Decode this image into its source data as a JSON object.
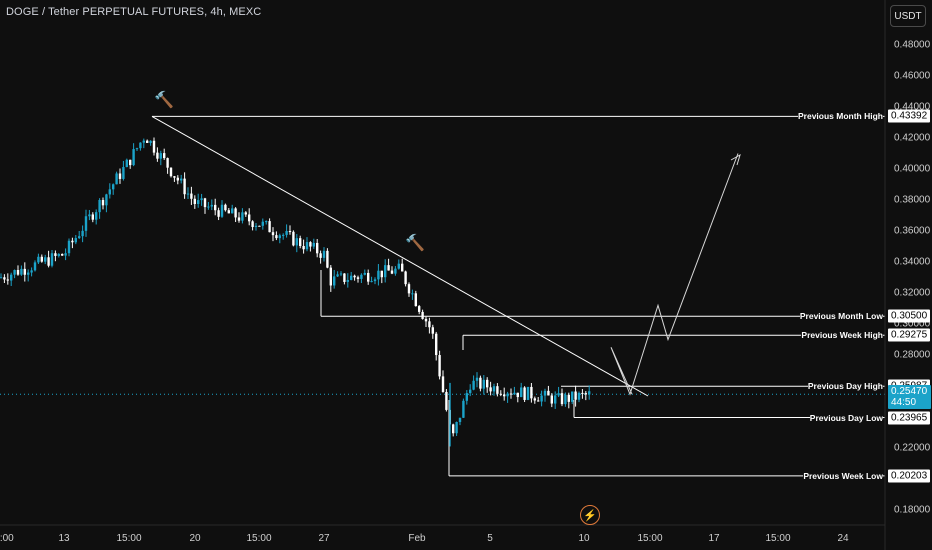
{
  "header": {
    "title": "DOGE / Tether PERPETUAL FUTURES, 4h, MEXC",
    "currency_button": "USDT"
  },
  "price_axis": {
    "labels": [
      "0.48000",
      "0.46000",
      "0.44000",
      "0.42000",
      "0.40000",
      "0.38000",
      "0.36000",
      "0.34000",
      "0.32000",
      "0.30000",
      "0.28000",
      "0.22000",
      "0.18000"
    ]
  },
  "time_axis": {
    "labels": [
      "2:00",
      "13",
      "15:00",
      "20",
      "15:00",
      "27",
      "Feb",
      "5",
      "10",
      "15:00",
      "17",
      "15:00",
      "24"
    ]
  },
  "levels": [
    {
      "name": "Previous Month High",
      "value": "0.43392"
    },
    {
      "name": "Previous Month Low",
      "value": "0.30500"
    },
    {
      "name": "Previous Week High",
      "value": "0.29275"
    },
    {
      "name": "Previous Day High",
      "value": "0.25987"
    },
    {
      "name": "Previous Day Low",
      "value": "0.23965"
    },
    {
      "name": "Previous Week Low",
      "value": "0.20203"
    }
  ],
  "current_price": {
    "value": "0.25470",
    "countdown": "44:50"
  },
  "icons": {
    "hammer": "hammer-icon",
    "lightning": "lightning-icon"
  },
  "colors": {
    "background": "#0f0f0f",
    "bull": "#1ba3c9",
    "bear": "#ffffff",
    "level_line": "#ffffff",
    "current_price": "#1ba3c9"
  },
  "chart_data": {
    "type": "candlestick",
    "symbol": "DOGE / Tether PERPETUAL FUTURES",
    "interval": "4h",
    "exchange": "MEXC",
    "ylim": [
      0.17,
      0.495
    ],
    "approx_path": [
      {
        "x": "2:00",
        "y": 0.33
      },
      {
        "x": "13",
        "y": 0.345
      },
      {
        "x": "15:00",
        "y": 0.405
      },
      {
        "x": "15:00",
        "y": 0.422
      },
      {
        "x": "20",
        "y": 0.378
      },
      {
        "x": "15:00",
        "y": 0.365
      },
      {
        "x": "27",
        "y": 0.345
      },
      {
        "x": "27",
        "y": 0.328
      },
      {
        "x": "Feb",
        "y": 0.335
      },
      {
        "x": "Feb",
        "y": 0.295
      },
      {
        "x": "Feb",
        "y": 0.225
      },
      {
        "x": "5",
        "y": 0.262
      },
      {
        "x": "10",
        "y": 0.251
      },
      {
        "x": "10",
        "y": 0.2547
      }
    ],
    "trendline": {
      "from": 0.43392,
      "to": 0.25987
    },
    "projection": [
      0.2547,
      0.285,
      0.2547,
      0.312,
      0.29,
      0.41
    ],
    "current_price": 0.2547
  }
}
